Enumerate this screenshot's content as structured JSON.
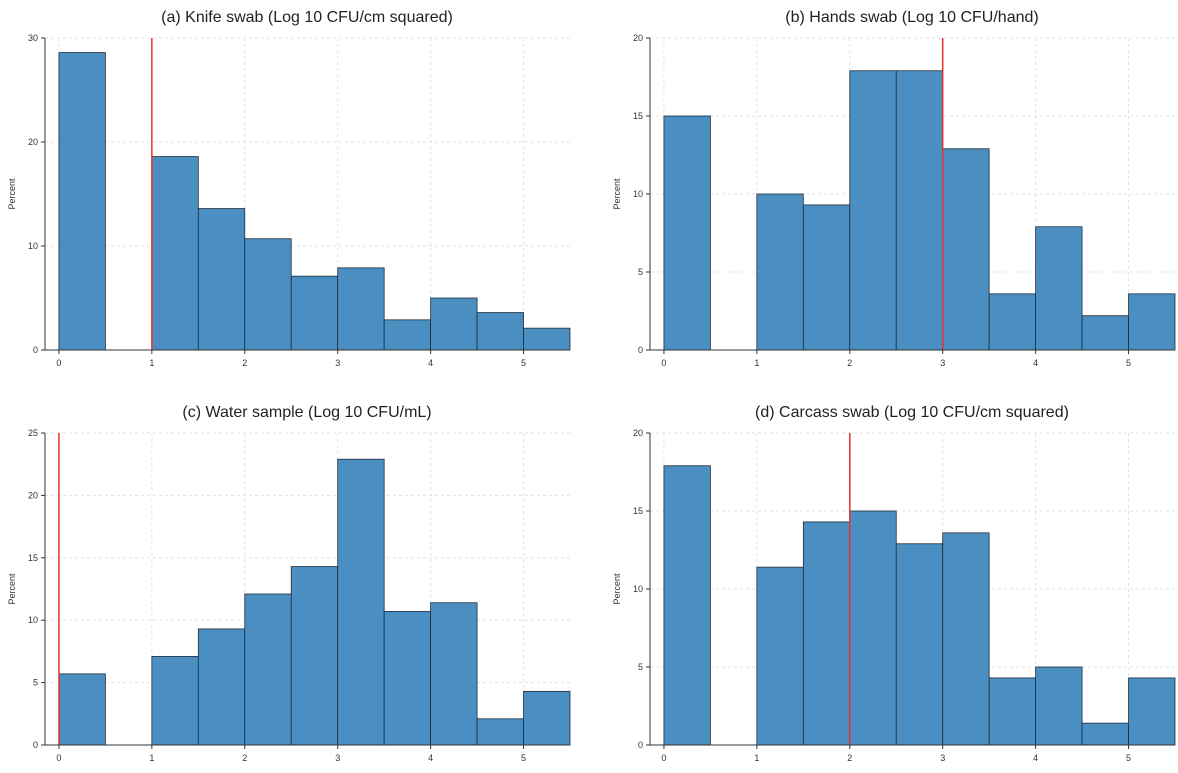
{
  "chart_data": [
    {
      "type": "bar",
      "title": "(a) Knife swab (Log 10 CFU/cm squared)",
      "ylabel": "Percent",
      "xlabel": "",
      "ylim": [
        0,
        30
      ],
      "xlim": [
        -0.15,
        5.5
      ],
      "yticks": [
        0,
        10,
        20,
        30
      ],
      "xticks": [
        0,
        1,
        2,
        3,
        4,
        5
      ],
      "bins": [
        [
          0,
          0.5
        ],
        [
          1,
          1.5
        ],
        [
          1.5,
          2
        ],
        [
          2,
          2.5
        ],
        [
          2.5,
          3
        ],
        [
          3,
          3.5
        ],
        [
          3.5,
          4
        ],
        [
          4,
          4.5
        ],
        [
          4.5,
          5
        ],
        [
          5,
          5.5
        ]
      ],
      "values": [
        28.6,
        18.6,
        13.6,
        10.7,
        7.1,
        7.9,
        2.9,
        5.0,
        3.6,
        2.1
      ],
      "reference_line_x": 1,
      "bar_color": "#4a8ec2",
      "line_color": "#e8322a"
    },
    {
      "type": "bar",
      "title": "(b) Hands swab (Log 10 CFU/hand)",
      "ylabel": "Percent",
      "xlabel": "",
      "ylim": [
        0,
        20
      ],
      "xlim": [
        -0.15,
        5.5
      ],
      "yticks": [
        0,
        5,
        10,
        15,
        20
      ],
      "xticks": [
        0,
        1,
        2,
        3,
        4,
        5
      ],
      "bins": [
        [
          0,
          0.5
        ],
        [
          1,
          1.5
        ],
        [
          1.5,
          2
        ],
        [
          2,
          2.5
        ],
        [
          2.5,
          3
        ],
        [
          3,
          3.5
        ],
        [
          3.5,
          4
        ],
        [
          4,
          4.5
        ],
        [
          4.5,
          5
        ],
        [
          5,
          5.5
        ]
      ],
      "values": [
        15.0,
        10.0,
        9.3,
        17.9,
        17.9,
        12.9,
        3.6,
        7.9,
        2.2,
        3.6
      ],
      "reference_line_x": 3,
      "bar_color": "#4a8ec2",
      "line_color": "#e8322a"
    },
    {
      "type": "bar",
      "title": "(c) Water sample (Log 10 CFU/mL)",
      "ylabel": "Percent",
      "xlabel": "",
      "ylim": [
        0,
        25
      ],
      "xlim": [
        -0.15,
        5.5
      ],
      "yticks": [
        0,
        5,
        10,
        15,
        20,
        25
      ],
      "xticks": [
        0,
        1,
        2,
        3,
        4,
        5
      ],
      "bins": [
        [
          0,
          0.5
        ],
        [
          1,
          1.5
        ],
        [
          1.5,
          2
        ],
        [
          2,
          2.5
        ],
        [
          2.5,
          3
        ],
        [
          3,
          3.5
        ],
        [
          3.5,
          4
        ],
        [
          4,
          4.5
        ],
        [
          4.5,
          5
        ],
        [
          5,
          5.5
        ]
      ],
      "values": [
        5.7,
        7.1,
        9.3,
        12.1,
        14.3,
        22.9,
        10.7,
        11.4,
        2.1,
        4.3
      ],
      "reference_line_x": 0,
      "bar_color": "#4a8ec2",
      "line_color": "#e8322a"
    },
    {
      "type": "bar",
      "title": "(d) Carcass swab (Log 10 CFU/cm squared)",
      "ylabel": "Percent",
      "xlabel": "",
      "ylim": [
        0,
        20
      ],
      "xlim": [
        -0.15,
        5.5
      ],
      "yticks": [
        0,
        5,
        10,
        15,
        20
      ],
      "xticks": [
        0,
        1,
        2,
        3,
        4,
        5
      ],
      "bins": [
        [
          0,
          0.5
        ],
        [
          1,
          1.5
        ],
        [
          1.5,
          2
        ],
        [
          2,
          2.5
        ],
        [
          2.5,
          3
        ],
        [
          3,
          3.5
        ],
        [
          3.5,
          4
        ],
        [
          4,
          4.5
        ],
        [
          4.5,
          5
        ],
        [
          5,
          5.5
        ]
      ],
      "values": [
        17.9,
        11.4,
        14.3,
        15.0,
        12.9,
        13.6,
        4.3,
        5.0,
        1.4,
        4.3
      ],
      "reference_line_x": 2,
      "bar_color": "#4a8ec2",
      "line_color": "#e8322a"
    }
  ]
}
